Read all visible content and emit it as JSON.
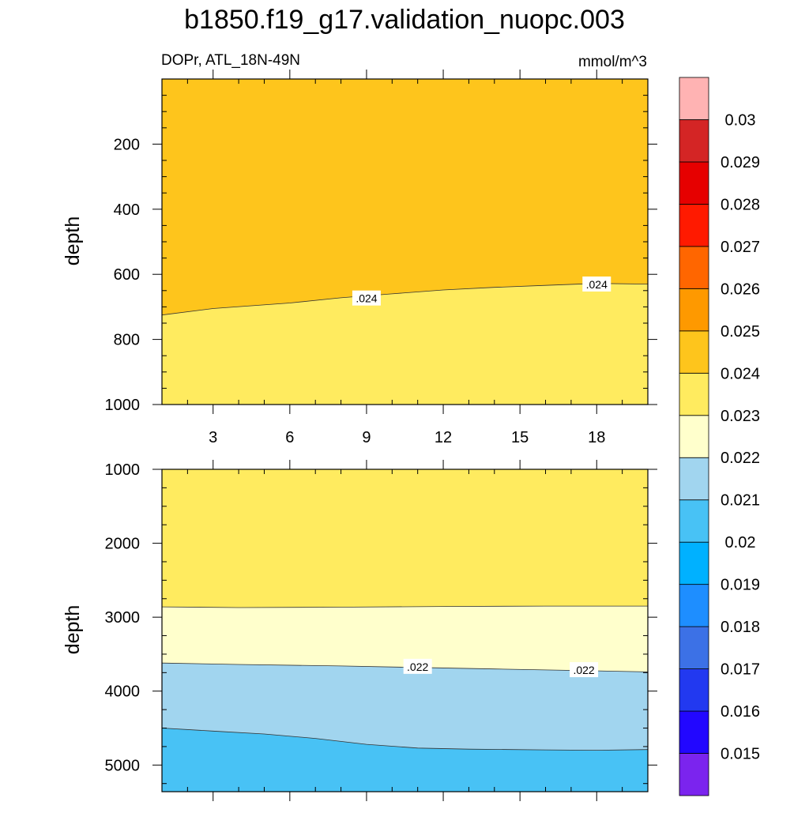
{
  "chart_data": {
    "type": "contour",
    "title": "b1850.f19_g17.validation_nuopc.003",
    "variable_label": "DOPr, ATL_18N-49N",
    "units_label": "mmol/m^3",
    "x_range": [
      1,
      20
    ],
    "x_ticks": [
      3,
      6,
      9,
      12,
      15,
      18
    ],
    "x_tick_labels": [
      "3",
      "6",
      "9",
      "12",
      "15",
      "18"
    ],
    "colors": {
      "fill_024": "#fec51c",
      "fill_023": "#ffeb5f",
      "fill_022": "#ffffcc",
      "fill_021": "#a1d5ef",
      "fill_020": "#48c2f5",
      "contour_line": "#333333"
    },
    "panels": [
      {
        "ylabel": "depth",
        "y_range": [
          0,
          1000
        ],
        "y_ticks": [
          200,
          400,
          600,
          800,
          1000
        ],
        "y_tick_labels": [
          "200",
          "400",
          "600",
          "800",
          "1000"
        ],
        "bands": [
          {
            "color_key": "fill_024",
            "top_edge": "top",
            "bottom_edge": 0
          },
          {
            "color_key": "fill_023",
            "top_edge": 0,
            "bottom_edge": "bottom"
          }
        ],
        "contours": [
          {
            "level": 0.024,
            "points": [
              [
                1,
                725
              ],
              [
                3,
                705
              ],
              [
                6,
                688
              ],
              [
                8,
                672
              ],
              [
                10,
                660
              ],
              [
                12,
                648
              ],
              [
                14,
                640
              ],
              [
                16,
                634
              ],
              [
                18,
                628
              ],
              [
                20,
                630
              ]
            ]
          }
        ],
        "contour_labels": [
          {
            "text": ".024",
            "x": 9,
            "y": 674
          },
          {
            "text": ".024",
            "x": 18,
            "y": 631
          }
        ]
      },
      {
        "ylabel": "depth",
        "y_range": [
          1000,
          5360
        ],
        "y_ticks": [
          1000,
          2000,
          3000,
          4000,
          5000
        ],
        "y_tick_labels": [
          "1000",
          "2000",
          "3000",
          "4000",
          "5000"
        ],
        "bands": [
          {
            "color_key": "fill_023",
            "top_edge": "top",
            "bottom_edge": 0
          },
          {
            "color_key": "fill_022",
            "top_edge": 0,
            "bottom_edge": 1
          },
          {
            "color_key": "fill_021",
            "top_edge": 1,
            "bottom_edge": 2
          },
          {
            "color_key": "fill_020",
            "top_edge": 2,
            "bottom_edge": "bottom"
          }
        ],
        "contours": [
          {
            "level": 0.023,
            "points": [
              [
                1,
                2860
              ],
              [
                4,
                2870
              ],
              [
                8,
                2865
              ],
              [
                12,
                2855
              ],
              [
                16,
                2850
              ],
              [
                20,
                2850
              ]
            ]
          },
          {
            "level": 0.022,
            "points": [
              [
                1,
                3620
              ],
              [
                4,
                3640
              ],
              [
                8,
                3660
              ],
              [
                11,
                3680
              ],
              [
                14,
                3700
              ],
              [
                17,
                3720
              ],
              [
                20,
                3740
              ]
            ]
          },
          {
            "level": 0.021,
            "points": [
              [
                1,
                4500
              ],
              [
                3,
                4540
              ],
              [
                5,
                4580
              ],
              [
                7,
                4640
              ],
              [
                9,
                4720
              ],
              [
                11,
                4770
              ],
              [
                13,
                4785
              ],
              [
                16,
                4795
              ],
              [
                18,
                4800
              ],
              [
                20,
                4790
              ]
            ]
          }
        ],
        "contour_labels": [
          {
            "text": ".022",
            "x": 11,
            "y": 3670
          },
          {
            "text": ".022",
            "x": 17.5,
            "y": 3715
          }
        ]
      }
    ],
    "colorbar": {
      "levels": [
        "0.015",
        "0.016",
        "0.017",
        "0.018",
        "0.019",
        "0.02",
        "0.021",
        "0.022",
        "0.023",
        "0.024",
        "0.025",
        "0.026",
        "0.027",
        "0.028",
        "0.029",
        "0.03"
      ],
      "colors_bottom_to_top": [
        "#7b24ee",
        "#2207ff",
        "#2239f0",
        "#3c71e6",
        "#1e8eff",
        "#00b1ff",
        "#48c2f5",
        "#a1d5ef",
        "#ffffcc",
        "#ffeb5f",
        "#fec51c",
        "#fe9900",
        "#ff6600",
        "#ff1a00",
        "#e60000",
        "#d42525",
        "#ffb3b3"
      ]
    }
  }
}
